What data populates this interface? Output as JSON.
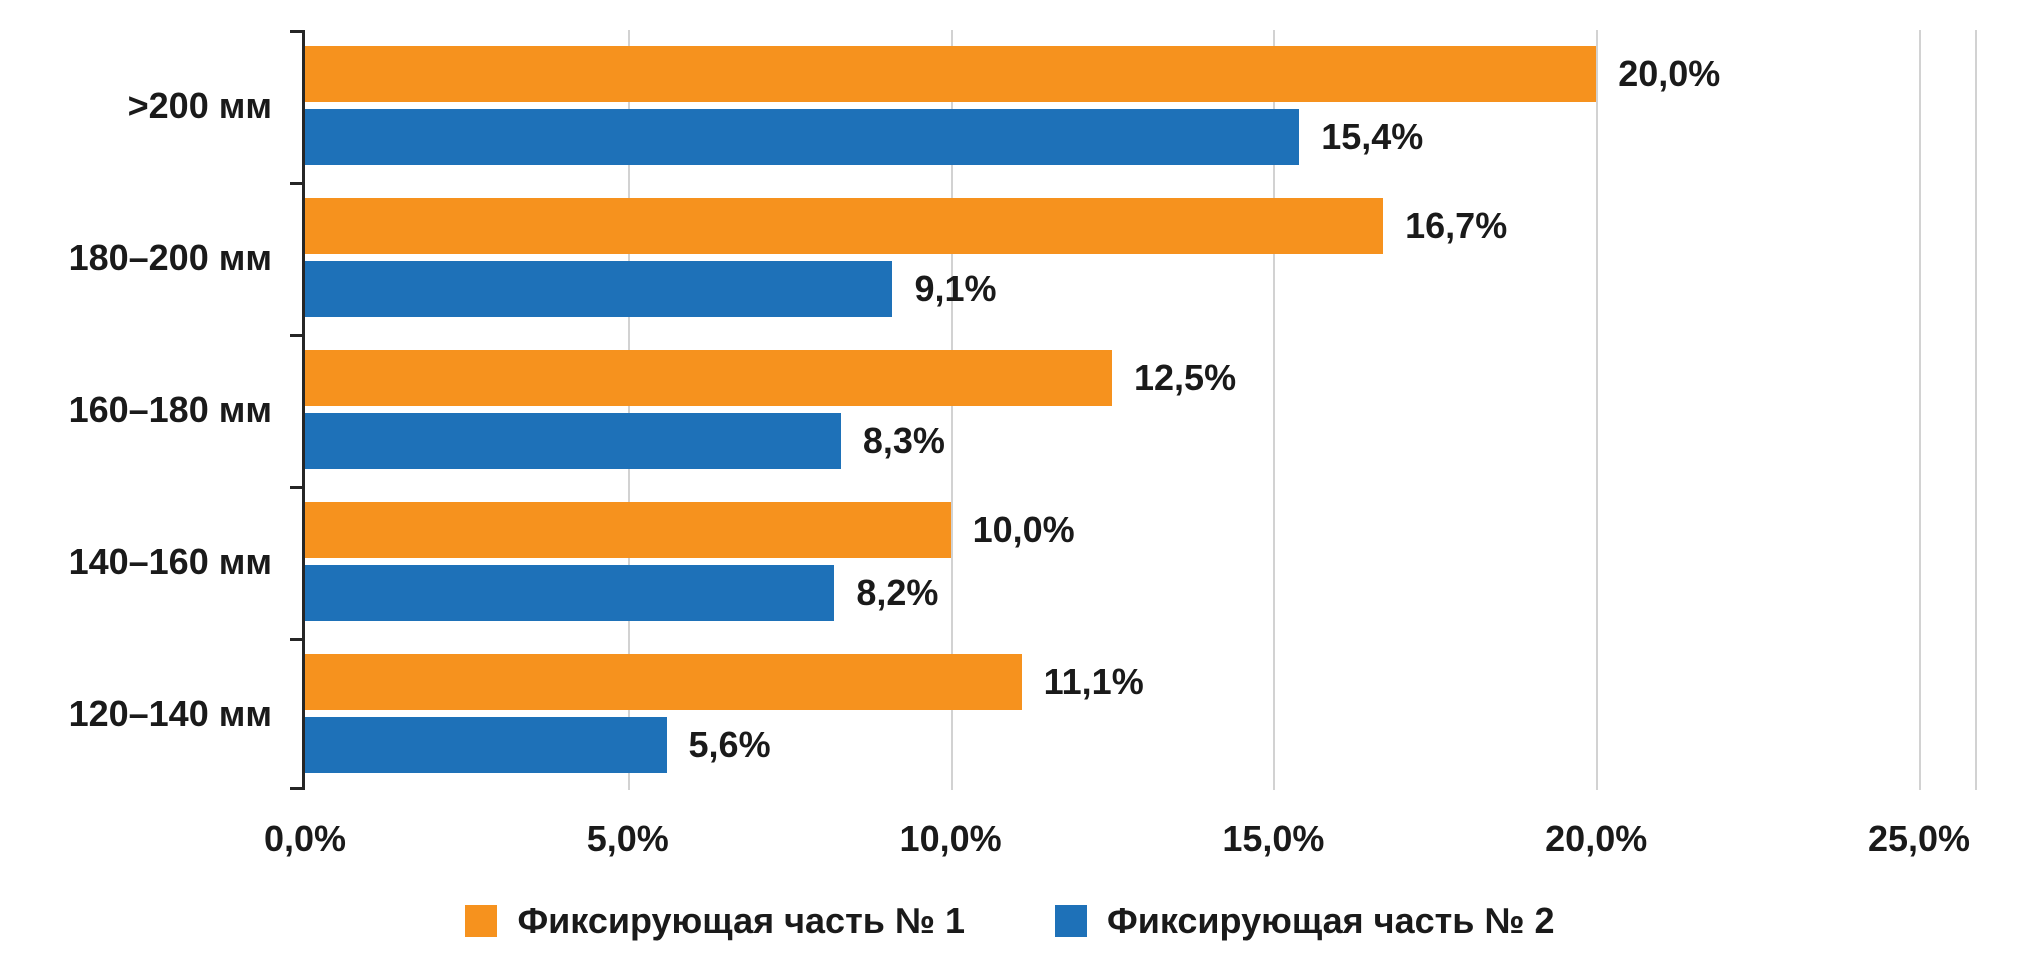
{
  "chart_data": {
    "type": "bar",
    "orientation": "horizontal",
    "title": "",
    "categories": [
      ">200 мм",
      "180–200 мм",
      "160–180 мм",
      "140–160 мм",
      "120–140 мм"
    ],
    "series": [
      {
        "name": "Фиксирующая часть № 1",
        "color": "#F6921E",
        "values": [
          20.0,
          16.7,
          12.5,
          10.0,
          11.1
        ],
        "labels": [
          "20,0%",
          "16,7%",
          "12,5%",
          "10,0%",
          "11,1%"
        ]
      },
      {
        "name": "Фиксирующая часть № 2",
        "color": "#1E71B8",
        "values": [
          15.4,
          9.1,
          8.3,
          8.2,
          5.6
        ],
        "labels": [
          "15,4%",
          "9,1%",
          "8,3%",
          "8,2%",
          "5,6%"
        ]
      }
    ],
    "x_axis": {
      "max": 25,
      "ticks": [
        0,
        5,
        10,
        15,
        20,
        25
      ],
      "tick_labels": [
        "0,0%",
        "5,0%",
        "10,0%",
        "15,0%",
        "20,0%",
        "25,0%"
      ]
    },
    "grid": true,
    "legend_position": "bottom",
    "colors": {
      "axis": "#262626",
      "gridline": "#d2d2d2",
      "text": "#1a1a1a",
      "background": "#ffffff"
    }
  }
}
